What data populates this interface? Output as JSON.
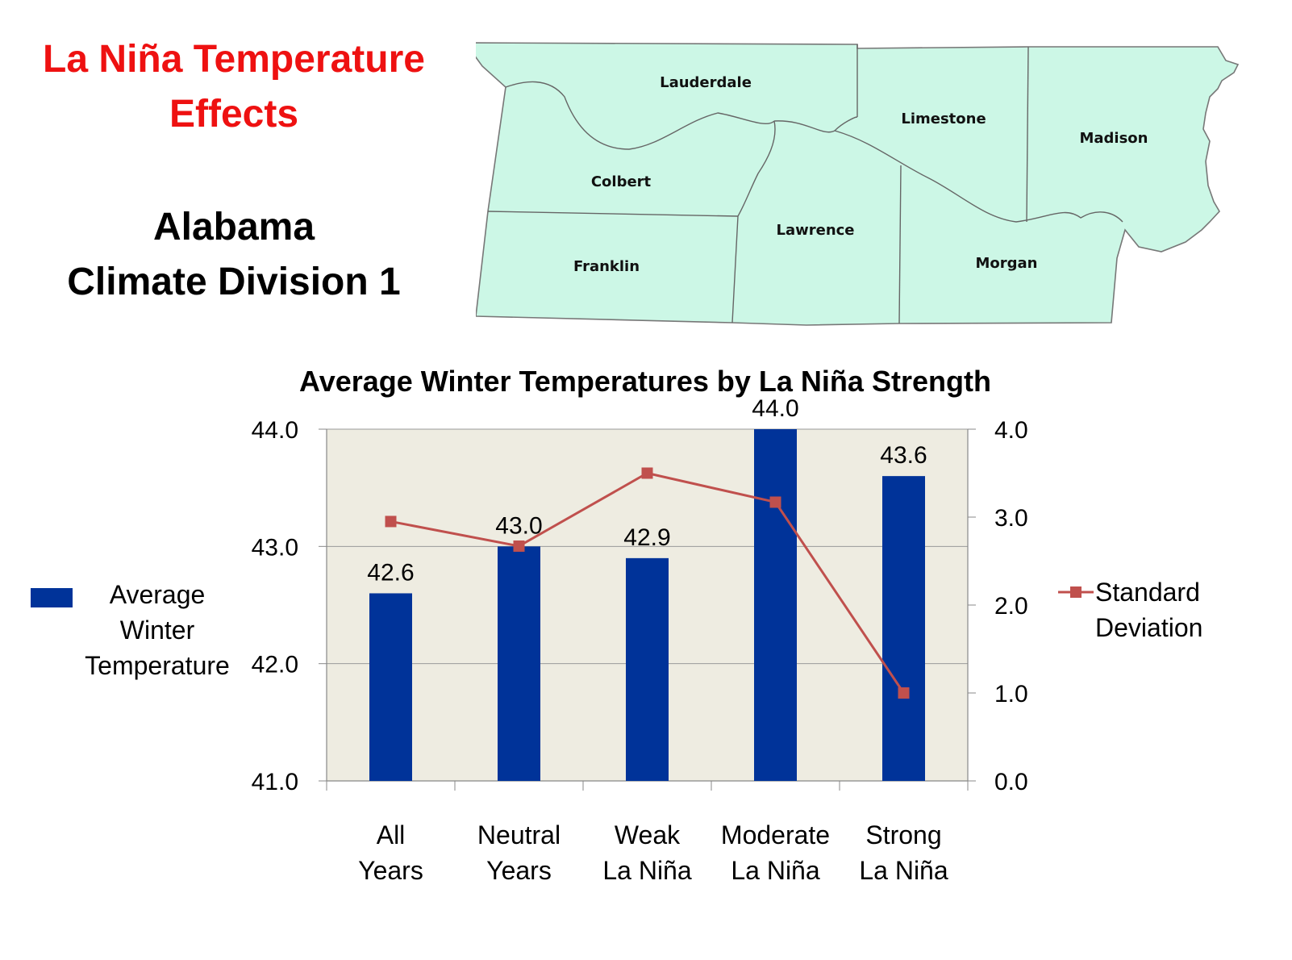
{
  "heading": {
    "line1": "La Niña Temperature",
    "line2": "Effects",
    "region1": "Alabama",
    "region2": "Climate Division 1"
  },
  "map": {
    "fill": "#ccf7e6",
    "counties": [
      "Lauderdale",
      "Limestone",
      "Madison",
      "Colbert",
      "Lawrence",
      "Franklin",
      "Morgan"
    ]
  },
  "chart_data": {
    "type": "bar",
    "title": "Average Winter Temperatures by La Niña Strength",
    "categories": [
      [
        "All",
        "Years"
      ],
      [
        "Neutral",
        "Years"
      ],
      [
        "Weak",
        "La Niña"
      ],
      [
        "Moderate",
        "La Niña"
      ],
      [
        "Strong",
        "La Niña"
      ]
    ],
    "series": [
      {
        "name": [
          "Average",
          "Winter",
          "Temperature"
        ],
        "type": "bar",
        "axis": "left",
        "color": "#003399",
        "values": [
          42.6,
          43.0,
          42.9,
          44.0,
          43.6
        ],
        "labels": [
          "42.6",
          "43.0",
          "42.9",
          "44.0",
          "43.6"
        ]
      },
      {
        "name": [
          "Standard",
          "Deviation"
        ],
        "type": "line",
        "axis": "right",
        "color": "#c0504d",
        "values": [
          2.95,
          2.67,
          3.5,
          3.17,
          1.0
        ]
      }
    ],
    "y_left": {
      "min": 41.0,
      "max": 44.0,
      "ticks": [
        "41.0",
        "42.0",
        "43.0",
        "44.0"
      ]
    },
    "y_right": {
      "min": 0.0,
      "max": 4.0,
      "ticks": [
        "0.0",
        "1.0",
        "2.0",
        "3.0",
        "4.0"
      ]
    },
    "plot_background": "#eeece1",
    "grid": true,
    "legend_left": "left",
    "legend_right": "right"
  }
}
